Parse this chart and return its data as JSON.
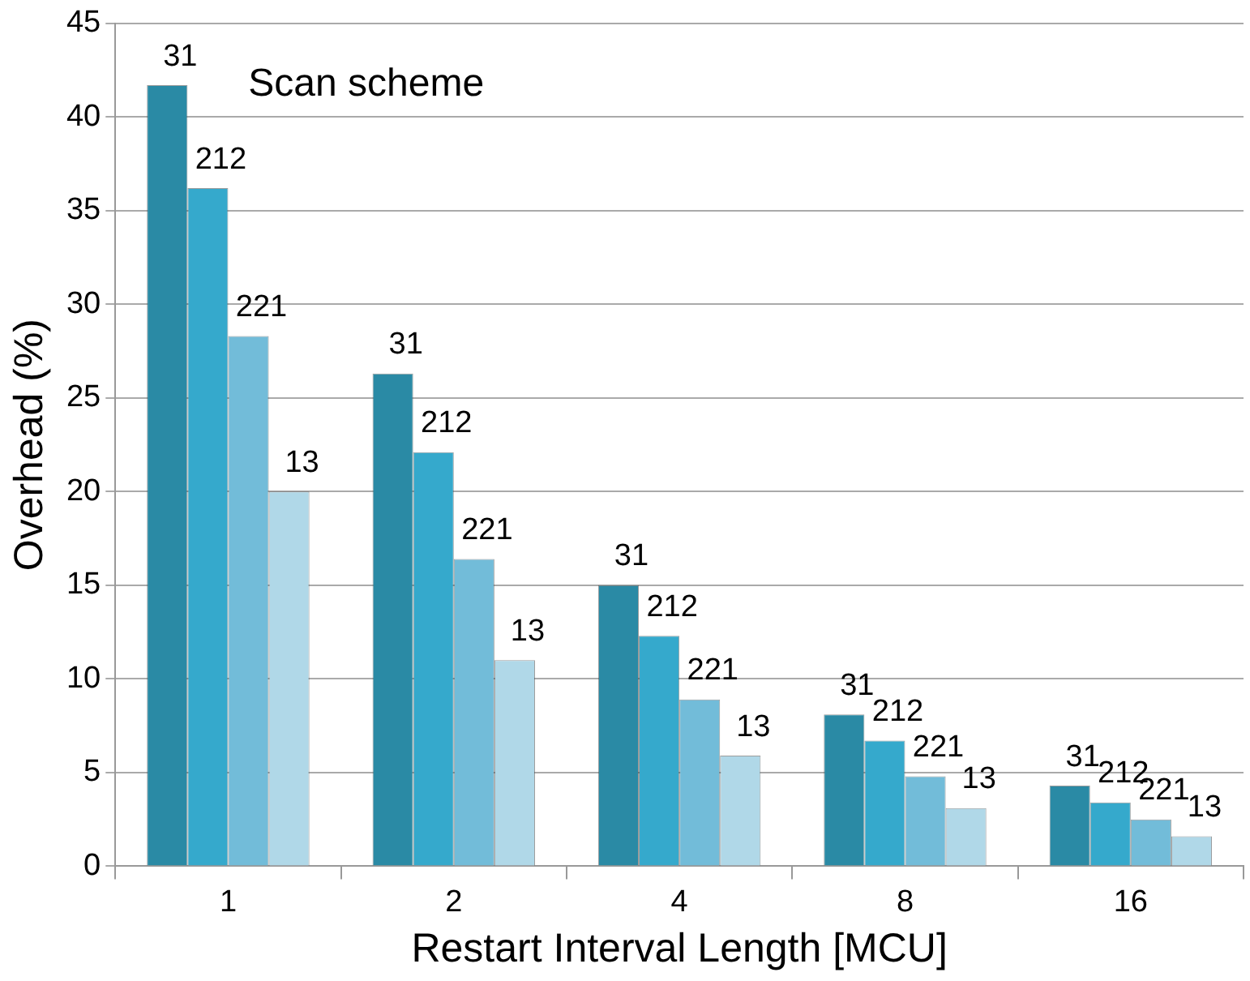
{
  "chart_data": {
    "type": "bar",
    "legend_title": "Scan scheme",
    "xlabel": "Restart Interval Length [MCU]",
    "ylabel": "Overhead (%)",
    "categories": [
      "1",
      "2",
      "4",
      "8",
      "16"
    ],
    "series": [
      {
        "name": "31",
        "color": "#2a8aa5",
        "values": [
          41.7,
          26.3,
          15.0,
          8.1,
          4.3
        ]
      },
      {
        "name": "212",
        "color": "#35a9cc",
        "values": [
          36.2,
          22.1,
          12.3,
          6.7,
          3.4
        ]
      },
      {
        "name": "221",
        "color": "#72bcd9",
        "values": [
          28.3,
          16.4,
          8.9,
          4.8,
          2.5
        ]
      },
      {
        "name": "13",
        "color": "#b0d8e8",
        "values": [
          20.0,
          11.0,
          5.9,
          3.1,
          1.6
        ]
      }
    ],
    "ylim": [
      0,
      45
    ],
    "yticks": [
      0,
      5,
      10,
      15,
      20,
      25,
      30,
      35,
      40,
      45
    ],
    "grid": "y",
    "legend": false
  }
}
